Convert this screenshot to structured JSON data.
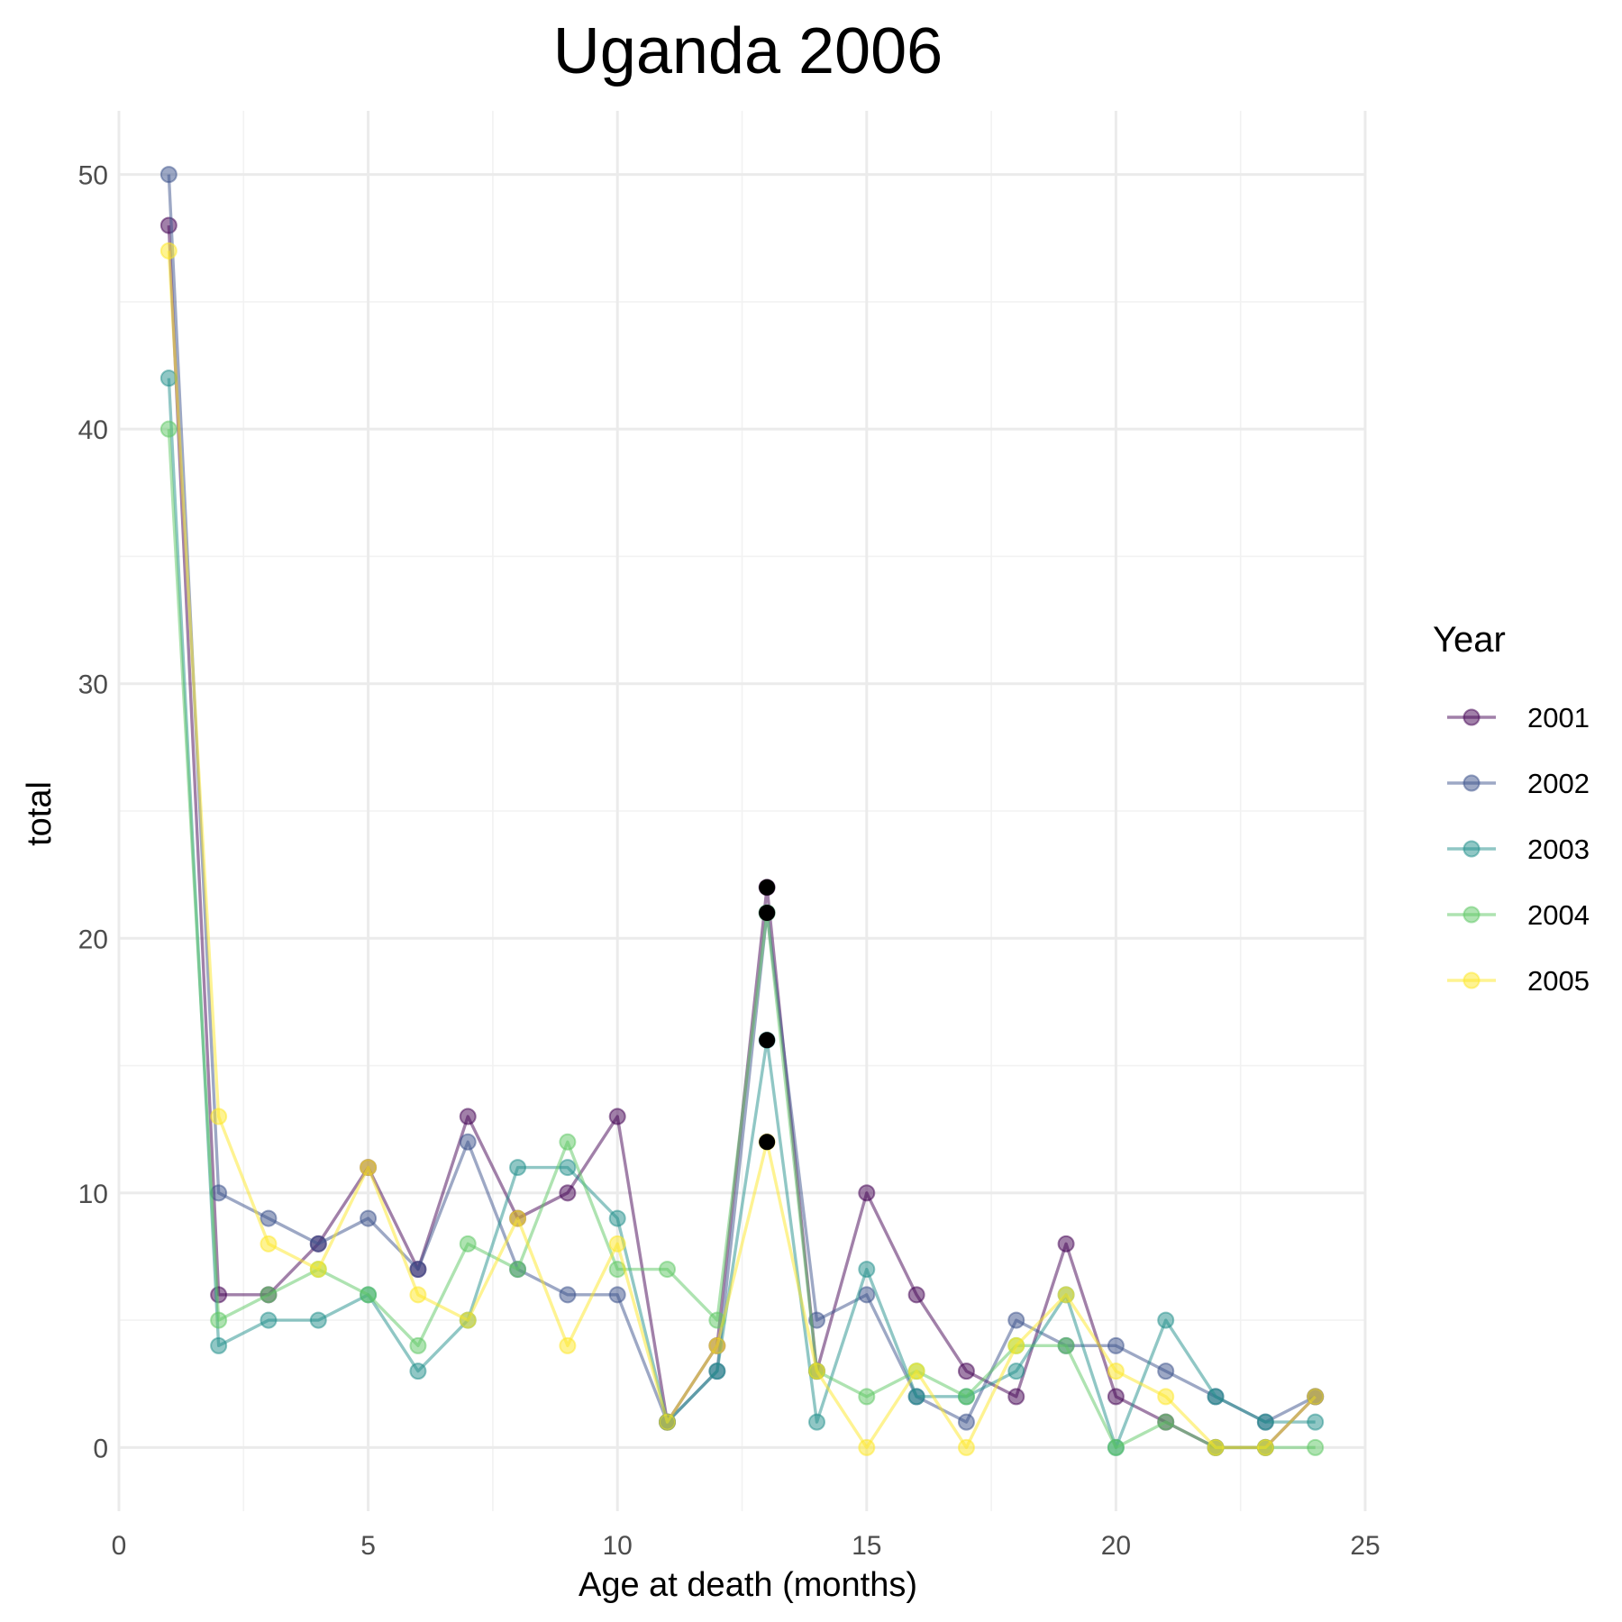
{
  "chart_data": {
    "type": "line",
    "title": "Uganda 2006",
    "xlabel": "Age at death (months)",
    "ylabel": "total",
    "xlim": [
      0,
      25
    ],
    "ylim": [
      -2.5,
      52.5
    ],
    "x_ticks": [
      0,
      5,
      10,
      15,
      20,
      25
    ],
    "y_ticks": [
      0,
      10,
      20,
      30,
      40,
      50
    ],
    "grid": true,
    "legend": {
      "title": "Year",
      "placement": "right"
    },
    "x": [
      1,
      2,
      3,
      4,
      5,
      6,
      7,
      8,
      9,
      10,
      11,
      12,
      13,
      14,
      15,
      16,
      17,
      18,
      19,
      20,
      21,
      22,
      23,
      24
    ],
    "series": [
      {
        "name": "2001",
        "color": "#440154",
        "values": [
          48,
          6,
          6,
          8,
          11,
          7,
          13,
          9,
          10,
          13,
          1,
          4,
          22,
          3,
          10,
          6,
          3,
          2,
          8,
          2,
          1,
          0,
          0,
          2
        ]
      },
      {
        "name": "2002",
        "color": "#3B528B",
        "values": [
          50,
          10,
          9,
          8,
          9,
          7,
          12,
          7,
          6,
          6,
          1,
          3,
          21,
          5,
          6,
          2,
          1,
          5,
          4,
          4,
          3,
          2,
          1,
          2
        ]
      },
      {
        "name": "2003",
        "color": "#21908C",
        "values": [
          42,
          4,
          5,
          5,
          6,
          3,
          5,
          11,
          11,
          9,
          1,
          3,
          16,
          1,
          7,
          2,
          2,
          3,
          6,
          0,
          5,
          2,
          1,
          1
        ]
      },
      {
        "name": "2004",
        "color": "#5DC863",
        "values": [
          40,
          5,
          6,
          7,
          6,
          4,
          8,
          7,
          12,
          7,
          7,
          5,
          21,
          3,
          2,
          3,
          2,
          4,
          4,
          0,
          1,
          0,
          0,
          0
        ]
      },
      {
        "name": "2005",
        "color": "#FDE725",
        "values": [
          47,
          13,
          8,
          7,
          11,
          6,
          5,
          9,
          4,
          8,
          1,
          4,
          12,
          3,
          0,
          3,
          0,
          4,
          6,
          3,
          2,
          0,
          0,
          2
        ]
      }
    ],
    "highlighted_points": {
      "color": "#000000",
      "points": [
        {
          "x": 13,
          "y": 22
        },
        {
          "x": 13,
          "y": 21
        },
        {
          "x": 13,
          "y": 16
        },
        {
          "x": 13,
          "y": 12
        }
      ]
    }
  }
}
